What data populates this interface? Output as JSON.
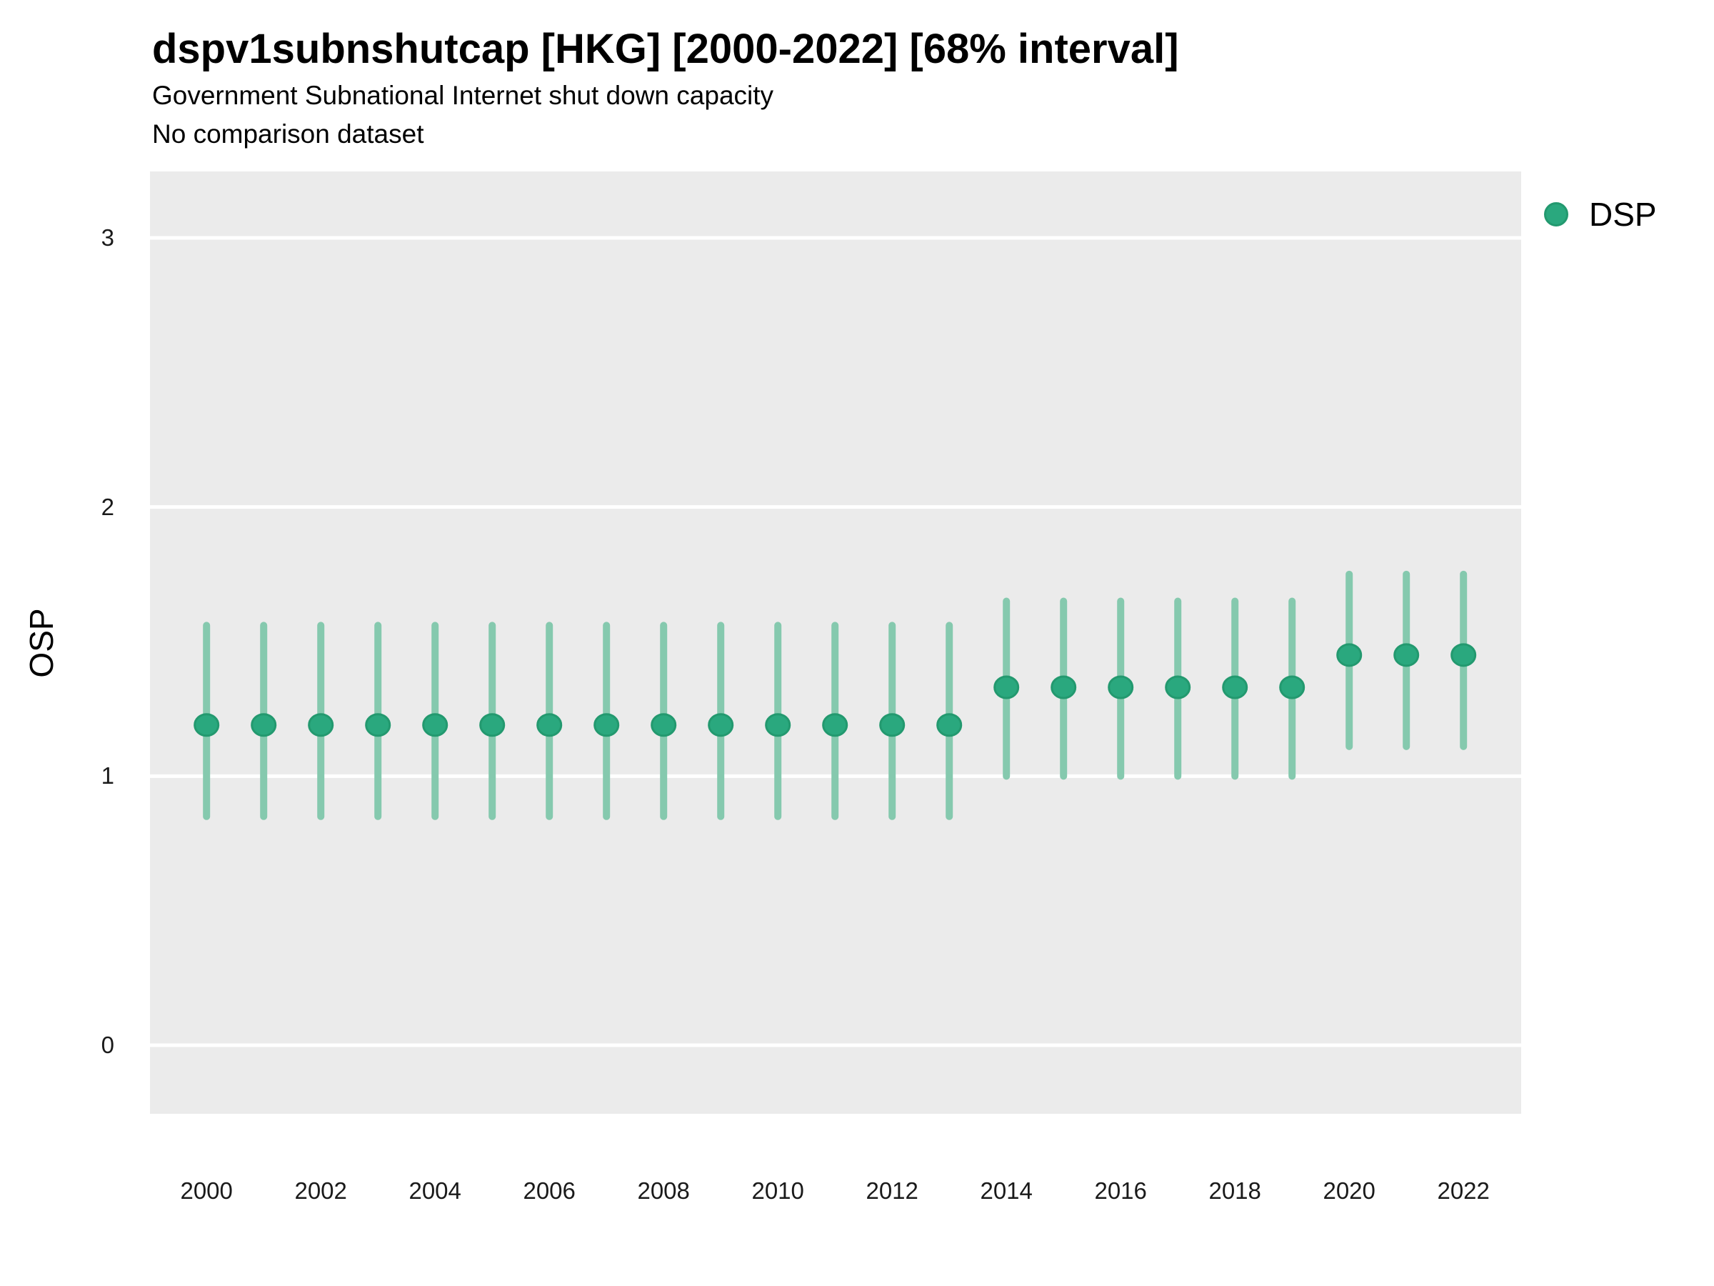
{
  "header": {
    "title": "dspv1subnshutcap [HKG] [2000-2022] [68% interval]",
    "subtitle": "Government Subnational Internet shut down capacity",
    "note": "No comparison dataset"
  },
  "legend": {
    "position": "right-top",
    "items": [
      {
        "label": "DSP",
        "marker": "circle",
        "color": "#2aa87e"
      }
    ]
  },
  "axes": {
    "ylabel": "OSP",
    "xlabel": "",
    "yticks": [
      0,
      1,
      2,
      3
    ],
    "xticks": [
      2000,
      2002,
      2004,
      2006,
      2008,
      2010,
      2012,
      2014,
      2016,
      2018,
      2020,
      2022
    ]
  },
  "chart_data": {
    "type": "scatter",
    "title": "dspv1subnshutcap [HKG] [2000-2022] [68% interval]",
    "subtitle": "Government Subnational Internet shut down capacity",
    "note": "No comparison dataset",
    "interval": "68%",
    "xlabel": "",
    "ylabel": "OSP",
    "xlim": [
      1999.01,
      2023.01
    ],
    "ylim": [
      -0.255,
      3.247
    ],
    "grid": "horizontal-major-only",
    "legend_position": "right-top",
    "x": [
      2000,
      2001,
      2002,
      2003,
      2004,
      2005,
      2006,
      2007,
      2008,
      2009,
      2010,
      2011,
      2012,
      2013,
      2014,
      2015,
      2016,
      2017,
      2018,
      2019,
      2020,
      2021,
      2022
    ],
    "series": [
      {
        "name": "DSP",
        "estimates": [
          1.19,
          1.19,
          1.19,
          1.19,
          1.19,
          1.19,
          1.19,
          1.19,
          1.19,
          1.19,
          1.19,
          1.19,
          1.19,
          1.19,
          1.33,
          1.33,
          1.33,
          1.33,
          1.33,
          1.33,
          1.45,
          1.45,
          1.45
        ],
        "lower_68": [
          0.85,
          0.85,
          0.85,
          0.85,
          0.85,
          0.85,
          0.85,
          0.85,
          0.85,
          0.85,
          0.85,
          0.85,
          0.85,
          0.85,
          1.0,
          1.0,
          1.0,
          1.0,
          1.0,
          1.0,
          1.11,
          1.11,
          1.11
        ],
        "upper_68": [
          1.56,
          1.56,
          1.56,
          1.56,
          1.56,
          1.56,
          1.56,
          1.56,
          1.56,
          1.56,
          1.56,
          1.56,
          1.56,
          1.56,
          1.65,
          1.65,
          1.65,
          1.65,
          1.65,
          1.65,
          1.75,
          1.75,
          1.75
        ]
      }
    ]
  },
  "style": {
    "page_bg": "#ffffff",
    "panel_bg": "#ebebeb",
    "grid_color": "#ffffff",
    "point_fill": "#2aa87e",
    "point_stroke": "#23996f",
    "errorbar_color": "#85c9ae",
    "text_color": "#000000",
    "tick_text_color": "#1a1a1a"
  }
}
